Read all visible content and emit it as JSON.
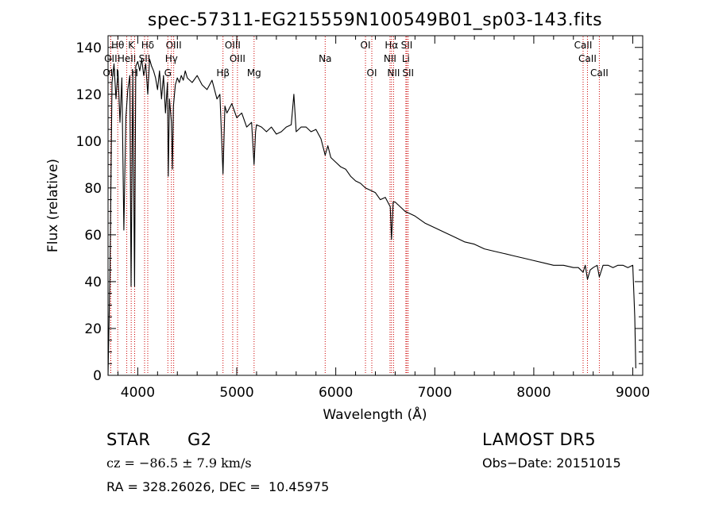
{
  "chart_data": {
    "type": "line",
    "title": "spec-57311-EG215559N100549B01_sp03-143.fits",
    "xlabel": "Wavelength (Å)",
    "ylabel": "Flux (relative)",
    "xlim": [
      3700,
      9100
    ],
    "ylim": [
      0,
      145
    ],
    "x_ticks": [
      4000,
      5000,
      6000,
      7000,
      8000,
      9000
    ],
    "y_ticks": [
      0,
      20,
      40,
      60,
      80,
      100,
      120,
      140
    ],
    "grid": false,
    "series": [
      {
        "x": [
          3700,
          3720,
          3740,
          3760,
          3780,
          3800,
          3820,
          3840,
          3860,
          3880,
          3900,
          3920,
          3933,
          3950,
          3968,
          3980,
          4000,
          4020,
          4040,
          4060,
          4080,
          4101,
          4120,
          4140,
          4160,
          4180,
          4200,
          4220,
          4240,
          4260,
          4280,
          4300,
          4308,
          4320,
          4340,
          4350,
          4360,
          4380,
          4400,
          4420,
          4440,
          4460,
          4480,
          4500,
          4550,
          4600,
          4650,
          4700,
          4750,
          4800,
          4830,
          4861,
          4880,
          4900,
          4950,
          5000,
          5050,
          5100,
          5150,
          5175,
          5190,
          5200,
          5250,
          5300,
          5350,
          5400,
          5450,
          5500,
          5550,
          5577,
          5600,
          5650,
          5700,
          5750,
          5800,
          5850,
          5893,
          5920,
          5950,
          6000,
          6050,
          6100,
          6150,
          6200,
          6250,
          6300,
          6350,
          6400,
          6450,
          6500,
          6550,
          6563,
          6580,
          6600,
          6650,
          6700,
          6750,
          6800,
          6900,
          7000,
          7100,
          7200,
          7300,
          7400,
          7500,
          7600,
          7700,
          7800,
          7900,
          8000,
          8100,
          8200,
          8300,
          8400,
          8450,
          8498,
          8520,
          8542,
          8570,
          8600,
          8640,
          8662,
          8700,
          8750,
          8800,
          8850,
          8900,
          8950,
          9000,
          9020,
          9030
        ],
        "y": [
          0,
          45,
          125,
          133,
          118,
          130,
          108,
          127,
          62,
          110,
          122,
          128,
          38,
          130,
          38,
          132,
          134,
          130,
          135,
          128,
          133,
          120,
          135,
          132,
          130,
          127,
          122,
          130,
          118,
          128,
          112,
          125,
          85,
          118,
          108,
          88,
          115,
          124,
          127,
          125,
          128,
          126,
          130,
          127,
          125,
          128,
          124,
          122,
          126,
          118,
          120,
          86,
          115,
          112,
          116,
          110,
          112,
          106,
          108,
          90,
          104,
          107,
          106,
          104,
          106,
          103,
          104,
          106,
          107,
          120,
          104,
          106,
          106,
          104,
          105,
          101,
          94,
          98,
          93,
          91,
          89,
          88,
          85,
          83,
          82,
          80,
          79,
          78,
          75,
          76,
          72,
          58,
          74,
          74,
          72,
          70,
          69,
          68,
          65,
          63,
          61,
          59,
          57,
          56,
          54,
          53,
          52,
          51,
          50,
          49,
          48,
          47,
          47,
          46,
          46,
          44,
          47,
          41,
          45,
          46,
          47,
          42,
          47,
          47,
          46,
          47,
          47,
          46,
          47,
          25,
          3
        ]
      }
    ],
    "lines": [
      {
        "label": "Hβ",
        "x": 4861,
        "row": 1
      },
      {
        "label": "Mg",
        "x": 5175,
        "row": 1
      },
      {
        "label": "Na",
        "x": 5893,
        "row": 0
      },
      {
        "label": "OI",
        "x": 6300,
        "row": -1
      },
      {
        "label": "OI",
        "x": 6364,
        "row": 1
      },
      {
        "label": "Hα",
        "x": 6563,
        "row": -1
      },
      {
        "label": "NII",
        "x": 6548,
        "row": 0
      },
      {
        "label": "NII",
        "x": 6584,
        "row": 1
      },
      {
        "label": "SII",
        "x": 6717,
        "row": -1
      },
      {
        "label": "SII",
        "x": 6731,
        "row": 1
      },
      {
        "label": "Li",
        "x": 6708,
        "row": 0
      },
      {
        "label": "OIII",
        "x": 4959,
        "row": -1
      },
      {
        "label": "OIII",
        "x": 5007,
        "row": 0
      },
      {
        "label": "OIII",
        "x": 4363,
        "row": -1
      },
      {
        "label": "Hγ",
        "x": 4340,
        "row": 0
      },
      {
        "label": "G",
        "x": 4304,
        "row": 1
      },
      {
        "label": "Hδ",
        "x": 4101,
        "row": -1
      },
      {
        "label": "K",
        "x": 3934,
        "row": -1
      },
      {
        "label": "Hθ",
        "x": 3798,
        "row": -1
      },
      {
        "label": "OII",
        "x": 3727,
        "row": 0
      },
      {
        "label": "HeII",
        "x": 3889,
        "row": 0
      },
      {
        "label": "SII",
        "x": 4069,
        "row": 0
      },
      {
        "label": "OIII",
        "x": 3727,
        "row": 1
      },
      {
        "label": "H",
        "x": 3969,
        "row": 1
      },
      {
        "label": "CaII",
        "x": 8498,
        "row": -1
      },
      {
        "label": "CaII",
        "x": 8542,
        "row": 0
      },
      {
        "label": "CaII",
        "x": 8662,
        "row": 1
      }
    ]
  },
  "info": {
    "class": "STAR",
    "subclass": "G2",
    "survey": "LAMOST DR5",
    "cz": "cz = −86.5 ± 7.9 km/s",
    "obs_date": "Obs−Date: 20151015",
    "coords": "RA = 328.26026, DEC =  10.45975"
  }
}
